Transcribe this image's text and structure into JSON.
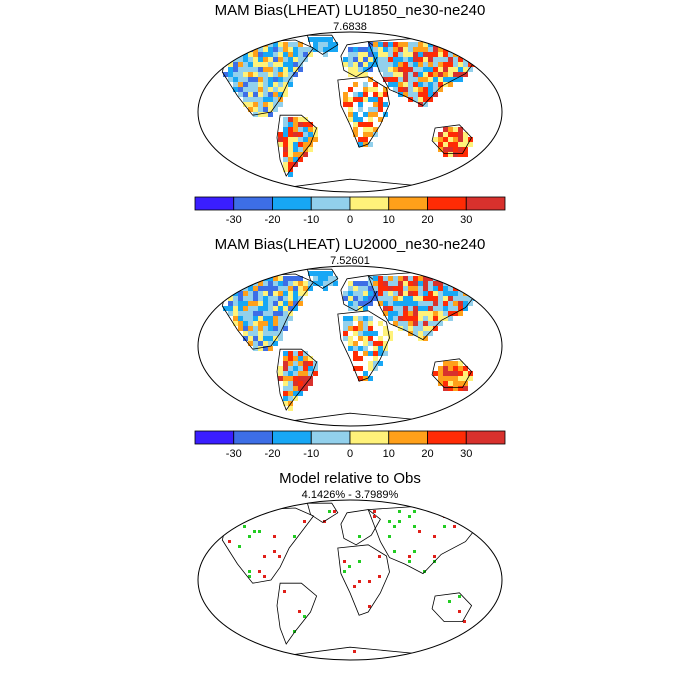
{
  "chart_data": [
    {
      "type": "map",
      "title": "MAM Bias(LHEAT) LU1850_ne30-ne240",
      "subtitle": "7.6838",
      "colorbar": {
        "ticks": [
          "-30",
          "-20",
          "-10",
          "0",
          "10",
          "20",
          "30"
        ],
        "colors": [
          "#3a1eff",
          "#3d6ee6",
          "#17a7f5",
          "#92d0ec",
          "#fff27a",
          "#ffa01a",
          "#ff2b05",
          "#d8312d"
        ]
      }
    },
    {
      "type": "map",
      "title": "MAM Bias(LHEAT) LU2000_ne30-ne240",
      "subtitle": "7.52601",
      "colorbar": {
        "ticks": [
          "-30",
          "-20",
          "-10",
          "0",
          "10",
          "20",
          "30"
        ],
        "colors": [
          "#3a1eff",
          "#3d6ee6",
          "#17a7f5",
          "#92d0ec",
          "#fff27a",
          "#ffa01a",
          "#ff2b05",
          "#d8312d"
        ]
      }
    },
    {
      "type": "map",
      "title": "Model relative to Obs",
      "subtitle": "4.1426% - 3.7989%",
      "marker_colors": [
        "#e0201a",
        "#22cc22"
      ]
    }
  ]
}
